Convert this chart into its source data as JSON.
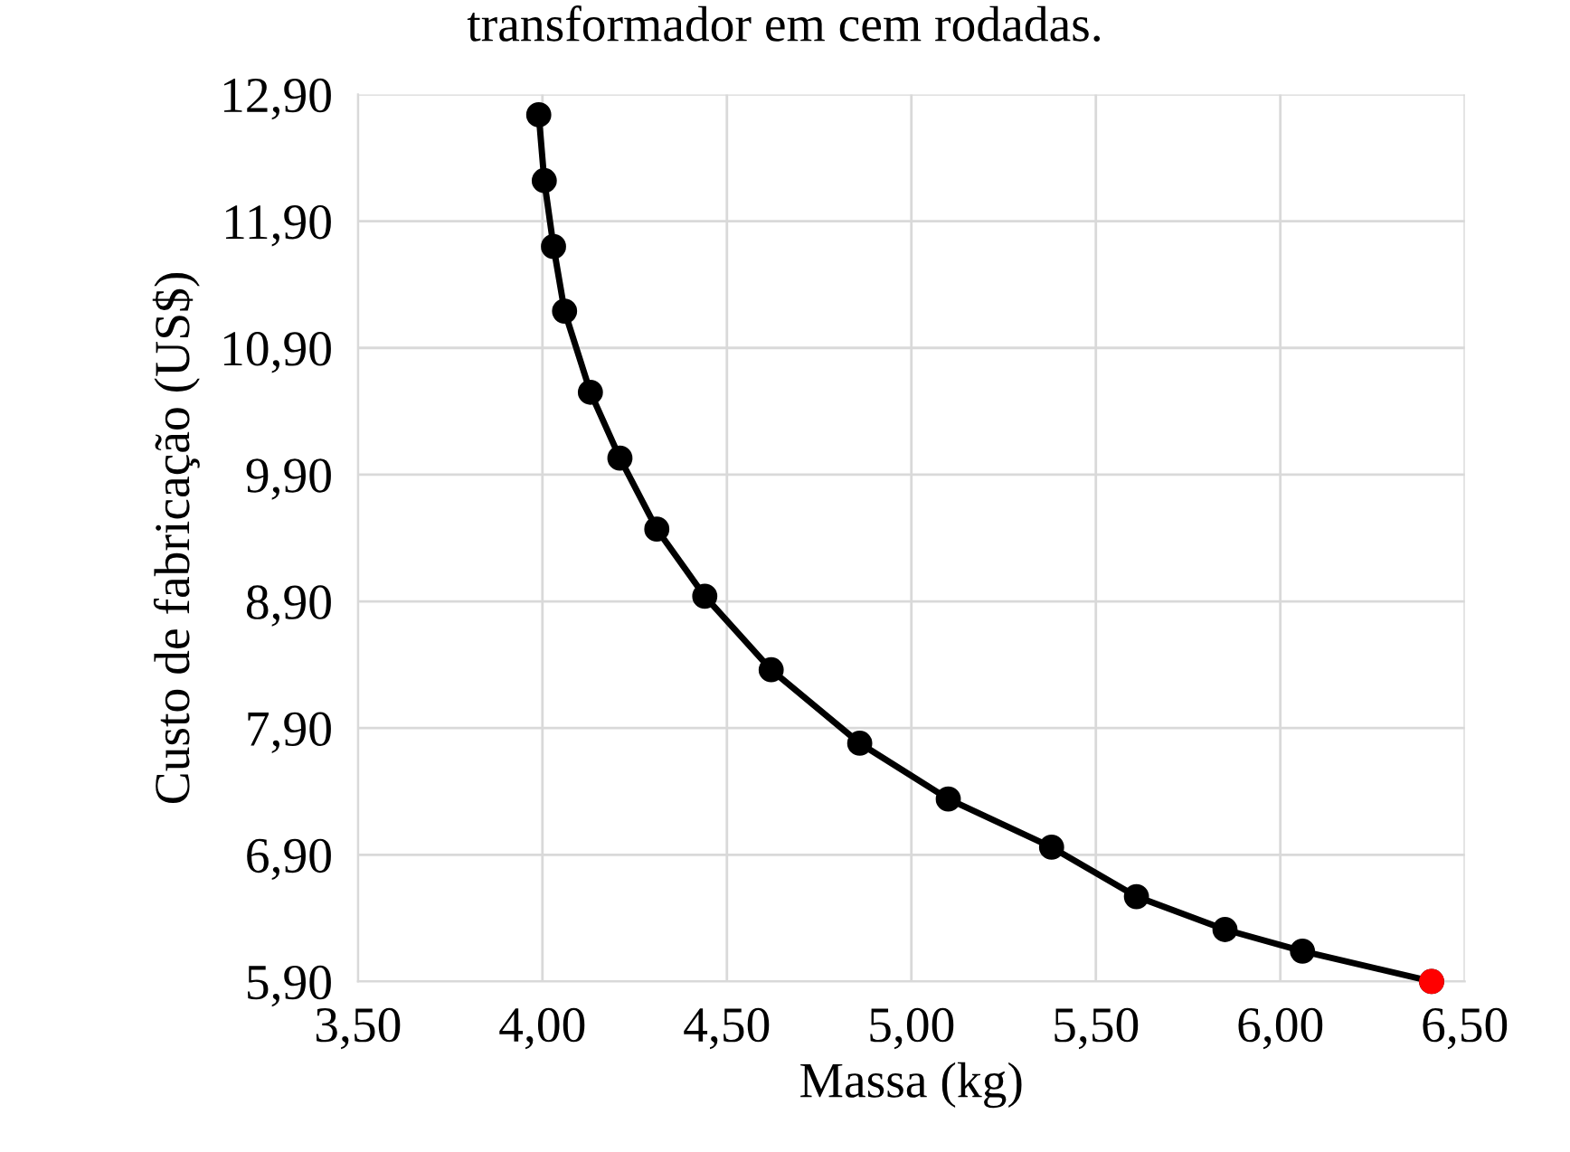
{
  "chart_data": {
    "type": "line",
    "title": "transformador em cem rodadas.",
    "xlabel": "Massa (kg)",
    "ylabel": "Custo de fabricação (US$)",
    "series": [
      {
        "color": "#000000",
        "marker": "circle",
        "x": [
          3.99,
          4.005,
          4.03,
          4.06,
          4.13,
          4.21,
          4.31,
          4.44,
          4.62,
          4.86,
          5.1,
          5.38,
          5.61,
          5.85,
          6.06,
          6.41
        ],
        "values": [
          12.74,
          12.22,
          11.7,
          11.19,
          10.55,
          10.03,
          9.47,
          8.94,
          8.36,
          7.78,
          7.34,
          6.96,
          6.57,
          6.31,
          6.14,
          5.9
        ]
      },
      {
        "type": "scatter",
        "color": "#ff0000",
        "marker": "circle",
        "x": [
          6.41
        ],
        "values": [
          5.9
        ]
      }
    ],
    "xlim": [
      3.5,
      6.5
    ],
    "ylim": [
      5.9,
      12.9
    ],
    "xticks": [
      {
        "value": 3.5,
        "label": "3,50"
      },
      {
        "value": 4.0,
        "label": "4,00"
      },
      {
        "value": 4.5,
        "label": "4,50"
      },
      {
        "value": 5.0,
        "label": "5,00"
      },
      {
        "value": 5.5,
        "label": "5,50"
      },
      {
        "value": 6.0,
        "label": "6,00"
      },
      {
        "value": 6.5,
        "label": "6,50"
      }
    ],
    "yticks": [
      {
        "value": 5.9,
        "label": "5,90"
      },
      {
        "value": 6.9,
        "label": "6,90"
      },
      {
        "value": 7.9,
        "label": "7,90"
      },
      {
        "value": 8.9,
        "label": "8,90"
      },
      {
        "value": 9.9,
        "label": "9,90"
      },
      {
        "value": 10.9,
        "label": "10,90"
      },
      {
        "value": 11.9,
        "label": "11,90"
      },
      {
        "value": 12.9,
        "label": "12,90"
      }
    ],
    "grid": true
  }
}
